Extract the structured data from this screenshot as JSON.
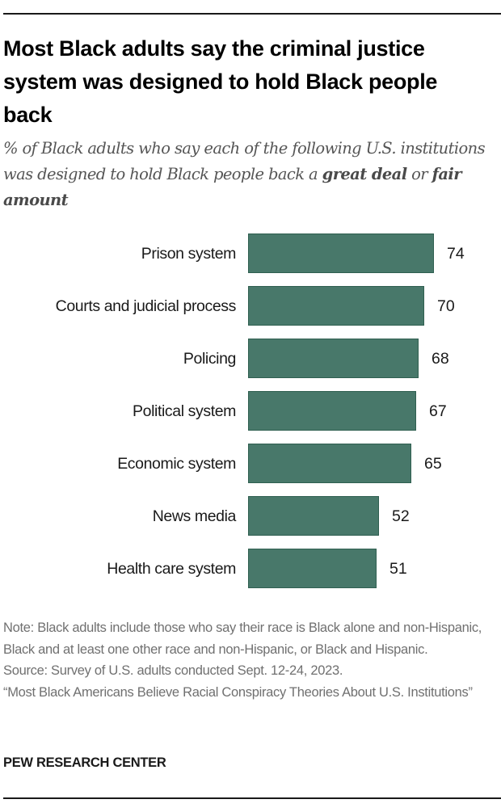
{
  "header": {
    "title": "Most Black adults say the criminal justice system was designed to hold Black people back",
    "subtitle_parts": {
      "lead": "% of Black adults who say each of the following U.S. institutions was designed to hold Black people back a ",
      "bold1": "great deal",
      "mid": " or ",
      "bold2": "fair amount"
    }
  },
  "colors": {
    "bar": "#48786a",
    "bar_border": "#2f5f50",
    "note_text": "#707070",
    "subtitle_text": "#555555"
  },
  "chart_data": {
    "type": "bar",
    "orientation": "horizontal",
    "title": "Most Black adults say the criminal justice system was designed to hold Black people back",
    "subtitle": "% of Black adults who say each of the following U.S. institutions was designed to hold Black people back a great deal or fair amount",
    "categories": [
      "Prison system",
      "Courts and judicial process",
      "Policing",
      "Political system",
      "Economic system",
      "News media",
      "Health care system"
    ],
    "values": [
      74,
      70,
      68,
      67,
      65,
      52,
      51
    ],
    "xlabel": "",
    "ylabel": "",
    "xlim": [
      0,
      100
    ],
    "grid": false,
    "legend": null,
    "data_labels": true
  },
  "bars": [
    {
      "label": "Prison system",
      "value": "74"
    },
    {
      "label": "Courts and judicial process",
      "value": "70"
    },
    {
      "label": "Policing",
      "value": "68"
    },
    {
      "label": "Political system",
      "value": "67"
    },
    {
      "label": "Economic system",
      "value": "65"
    },
    {
      "label": "News media",
      "value": "52"
    },
    {
      "label": "Health care system",
      "value": "51"
    }
  ],
  "footer": {
    "note": "Note: Black adults include those who say their race is Black alone and non-Hispanic, Black and at least one other race and non-Hispanic, or Black and Hispanic.",
    "source": "Source: Survey of U.S. adults conducted Sept. 12-24, 2023.",
    "report": "“Most Black Americans Believe Racial Conspiracy Theories About U.S. Institutions”",
    "brand": "PEW RESEARCH CENTER"
  }
}
